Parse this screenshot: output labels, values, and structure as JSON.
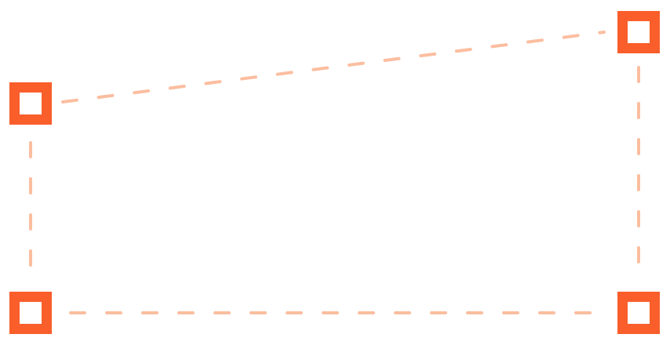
{
  "colors": {
    "handle": "#f95e2b",
    "edge": "#fbbea0",
    "background": "#ffffff"
  },
  "shape": {
    "type": "quadrilateral-selection",
    "corner_count": 4,
    "edge_style": "dashed"
  }
}
